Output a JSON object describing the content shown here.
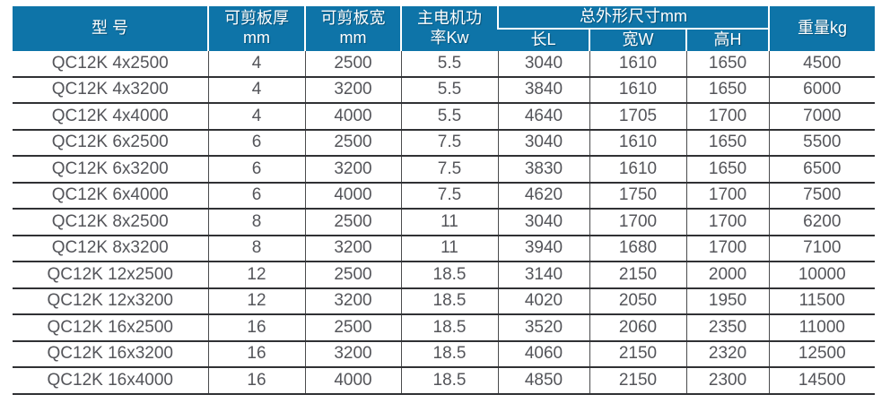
{
  "accent_color": "#0e74a8",
  "body_text_color": "#54555a",
  "border_color": "#303134",
  "table": {
    "header": {
      "model": "型 号",
      "thickness_line1": "可剪板厚",
      "thickness_line2": "mm",
      "width_line1": "可剪板宽",
      "width_line2": "mm",
      "power_line1": "主电机功",
      "power_line2": "率Kw",
      "dimensions_group": "总外形尺寸mm",
      "dim_length": "长L",
      "dim_width": "宽W",
      "dim_height": "高H",
      "weight": "重量kg"
    },
    "rows": [
      [
        "QC12K 4x2500",
        "4",
        "2500",
        "5.5",
        "3040",
        "1610",
        "1650",
        "4500"
      ],
      [
        "QC12K 4x3200",
        "4",
        "3200",
        "5.5",
        "3840",
        "1610",
        "1650",
        "6000"
      ],
      [
        "QC12K 4x4000",
        "4",
        "4000",
        "5.5",
        "4640",
        "1705",
        "1700",
        "7000"
      ],
      [
        "QC12K 6x2500",
        "6",
        "2500",
        "7.5",
        "3040",
        "1610",
        "1650",
        "5500"
      ],
      [
        "QC12K 6x3200",
        "6",
        "3200",
        "7.5",
        "3830",
        "1610",
        "1650",
        "6500"
      ],
      [
        "QC12K 6x4000",
        "6",
        "4000",
        "7.5",
        "4620",
        "1750",
        "1700",
        "7500"
      ],
      [
        "QC12K 8x2500",
        "8",
        "2500",
        "11",
        "3040",
        "1700",
        "1700",
        "6200"
      ],
      [
        "QC12K 8x3200",
        "8",
        "3200",
        "11",
        "3940",
        "1680",
        "1700",
        "7100"
      ],
      [
        "QC12K 12x2500",
        "12",
        "2500",
        "18.5",
        "3140",
        "2150",
        "2000",
        "10000"
      ],
      [
        "QC12K 12x3200",
        "12",
        "3200",
        "18.5",
        "4020",
        "2050",
        "1950",
        "11500"
      ],
      [
        "QC12K 16x2500",
        "16",
        "2500",
        "18.5",
        "3520",
        "2060",
        "2350",
        "11000"
      ],
      [
        "QC12K 16x3200",
        "16",
        "3200",
        "18.5",
        "4060",
        "2150",
        "2320",
        "12500"
      ],
      [
        "QC12K 16x4000",
        "16",
        "4000",
        "18.5",
        "4850",
        "2150",
        "2300",
        "14500"
      ]
    ]
  },
  "chart_data": {
    "type": "table",
    "title": "",
    "columns": [
      "型号",
      "可剪板厚mm",
      "可剪板宽mm",
      "主电机功率Kw",
      "总外形尺寸mm 长L",
      "总外形尺寸mm 宽W",
      "总外形尺寸mm 高H",
      "重量kg"
    ],
    "rows": [
      {
        "model": "QC12K 4x2500",
        "thickness_mm": 4,
        "width_mm": 2500,
        "motor_power_kw": 5.5,
        "length_L": 3040,
        "width_W": 1610,
        "height_H": 1650,
        "weight_kg": 4500
      },
      {
        "model": "QC12K 4x3200",
        "thickness_mm": 4,
        "width_mm": 3200,
        "motor_power_kw": 5.5,
        "length_L": 3840,
        "width_W": 1610,
        "height_H": 1650,
        "weight_kg": 6000
      },
      {
        "model": "QC12K 4x4000",
        "thickness_mm": 4,
        "width_mm": 4000,
        "motor_power_kw": 5.5,
        "length_L": 4640,
        "width_W": 1705,
        "height_H": 1700,
        "weight_kg": 7000
      },
      {
        "model": "QC12K 6x2500",
        "thickness_mm": 6,
        "width_mm": 2500,
        "motor_power_kw": 7.5,
        "length_L": 3040,
        "width_W": 1610,
        "height_H": 1650,
        "weight_kg": 5500
      },
      {
        "model": "QC12K 6x3200",
        "thickness_mm": 6,
        "width_mm": 3200,
        "motor_power_kw": 7.5,
        "length_L": 3830,
        "width_W": 1610,
        "height_H": 1650,
        "weight_kg": 6500
      },
      {
        "model": "QC12K 6x4000",
        "thickness_mm": 6,
        "width_mm": 4000,
        "motor_power_kw": 7.5,
        "length_L": 4620,
        "width_W": 1750,
        "height_H": 1700,
        "weight_kg": 7500
      },
      {
        "model": "QC12K 8x2500",
        "thickness_mm": 8,
        "width_mm": 2500,
        "motor_power_kw": 11,
        "length_L": 3040,
        "width_W": 1700,
        "height_H": 1700,
        "weight_kg": 6200
      },
      {
        "model": "QC12K 8x3200",
        "thickness_mm": 8,
        "width_mm": 3200,
        "motor_power_kw": 11,
        "length_L": 3940,
        "width_W": 1680,
        "height_H": 1700,
        "weight_kg": 7100
      },
      {
        "model": "QC12K 12x2500",
        "thickness_mm": 12,
        "width_mm": 2500,
        "motor_power_kw": 18.5,
        "length_L": 3140,
        "width_W": 2150,
        "height_H": 2000,
        "weight_kg": 10000
      },
      {
        "model": "QC12K 12x3200",
        "thickness_mm": 12,
        "width_mm": 3200,
        "motor_power_kw": 18.5,
        "length_L": 4020,
        "width_W": 2050,
        "height_H": 1950,
        "weight_kg": 11500
      },
      {
        "model": "QC12K 16x2500",
        "thickness_mm": 16,
        "width_mm": 2500,
        "motor_power_kw": 18.5,
        "length_L": 3520,
        "width_W": 2060,
        "height_H": 2350,
        "weight_kg": 11000
      },
      {
        "model": "QC12K 16x3200",
        "thickness_mm": 16,
        "width_mm": 3200,
        "motor_power_kw": 18.5,
        "length_L": 4060,
        "width_W": 2150,
        "height_H": 2320,
        "weight_kg": 12500
      },
      {
        "model": "QC12K 16x4000",
        "thickness_mm": 16,
        "width_mm": 4000,
        "motor_power_kw": 18.5,
        "length_L": 4850,
        "width_W": 2150,
        "height_H": 2300,
        "weight_kg": 14500
      }
    ]
  }
}
